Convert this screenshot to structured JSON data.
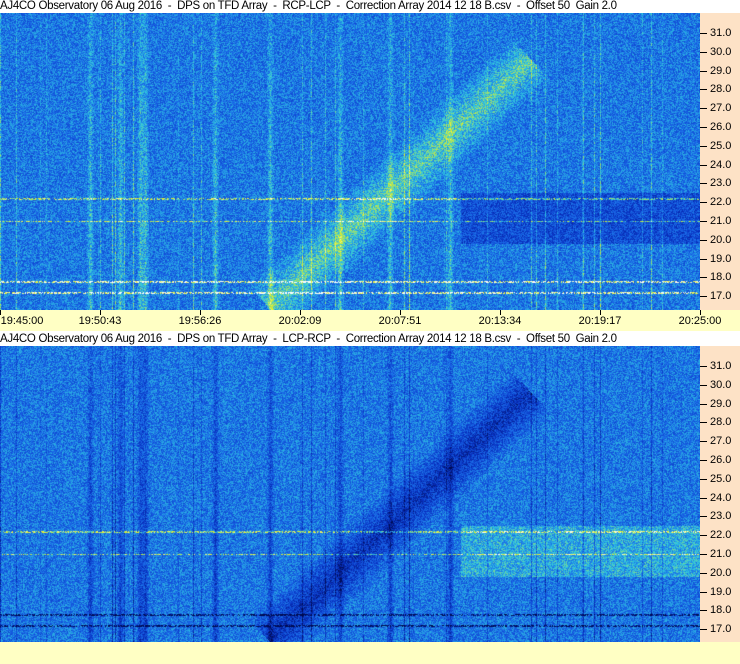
{
  "panels": [
    {
      "title": "AJ4CO Observatory 06 Aug 2016  -  DPS on TFD Array  -  RCP-LCP  -  Correction Array 2014 12 18 B.csv  -  Offset 50  Gain 2.0",
      "polarity": "RCP-LCP"
    },
    {
      "title": "AJ4CO Observatory 06 Aug 2016  -  DPS on TFD Array  -  LCP-RCP  -  Correction Array 2014 12 18 B.csv  -  Offset 50  Gain 2.0",
      "polarity": "LCP-RCP"
    }
  ],
  "chart_data": {
    "type": "heatmap",
    "x_ticks": [
      "19:45:00",
      "19:50:43",
      "19:56:26",
      "20:02:09",
      "20:07:51",
      "20:13:34",
      "20:19:17",
      "20:25:00"
    ],
    "xlim": [
      "19:45:00",
      "20:25:00"
    ],
    "y_ticks": [
      "31.0",
      "30.0",
      "29.0",
      "28.0",
      "27.0",
      "26.0",
      "25.0",
      "24.0",
      "23.0",
      "22.0",
      "21.0",
      "20.0",
      "19.0",
      "18.0",
      "17.0"
    ],
    "ylim": [
      16.5,
      32.0
    ],
    "y_axis_position": "right",
    "colormap": [
      "#000a50",
      "#0830c0",
      "#1a6ae8",
      "#30c8e0",
      "#e8f020",
      "#ffffff"
    ],
    "features": [
      {
        "kind": "drifting burst",
        "start_time": "20:01:00",
        "start_freq": 17.0,
        "end_time": "20:14:00",
        "end_freq": 28.5
      },
      {
        "kind": "interference lines",
        "freqs": [
          17.2,
          17.8,
          21.0,
          22.2
        ]
      }
    ]
  }
}
